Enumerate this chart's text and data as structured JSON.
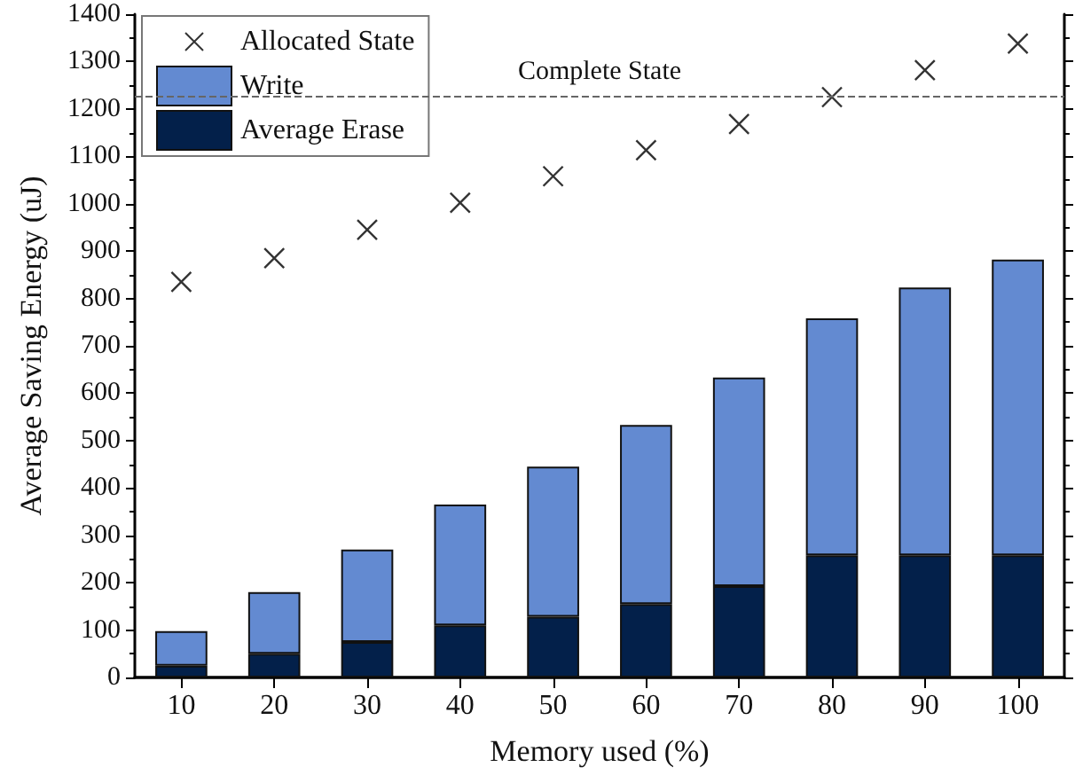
{
  "chart_data": {
    "type": "bar",
    "xlabel": "Memory used (%)",
    "ylabel": "Average Saving Energy (uJ)",
    "categories": [
      "10",
      "20",
      "30",
      "40",
      "50",
      "60",
      "70",
      "80",
      "90",
      "100"
    ],
    "series": [
      {
        "name": "Allocated State",
        "type": "scatter",
        "marker": "cross",
        "color": "#000000",
        "x": [
          "10",
          "20",
          "30",
          "40",
          "50",
          "60",
          "70",
          "80",
          "90",
          "100"
        ],
        "values": [
          835,
          885,
          945,
          1002,
          1058,
          1113,
          1168,
          1225,
          1282,
          1338
        ]
      },
      {
        "name": "Average Erase",
        "color": "#03204a",
        "values": [
          25,
          50,
          75,
          110,
          128,
          155,
          193,
          258,
          258,
          258
        ]
      },
      {
        "name": "Write",
        "color": "#638ad1",
        "values": [
          73,
          130,
          195,
          255,
          317,
          378,
          440,
          500,
          565,
          624
        ]
      }
    ],
    "stacked": true,
    "ylim": [
      0,
      1400
    ],
    "yticks": [
      0,
      100,
      200,
      300,
      400,
      500,
      600,
      700,
      800,
      900,
      1000,
      1100,
      1200,
      1300,
      1400
    ],
    "ref_lines": [
      {
        "axis": "y",
        "value": 1228,
        "label": "Complete State",
        "color": "#666666",
        "line_style": "dashed"
      }
    ],
    "grid": false,
    "legend": "top left"
  }
}
